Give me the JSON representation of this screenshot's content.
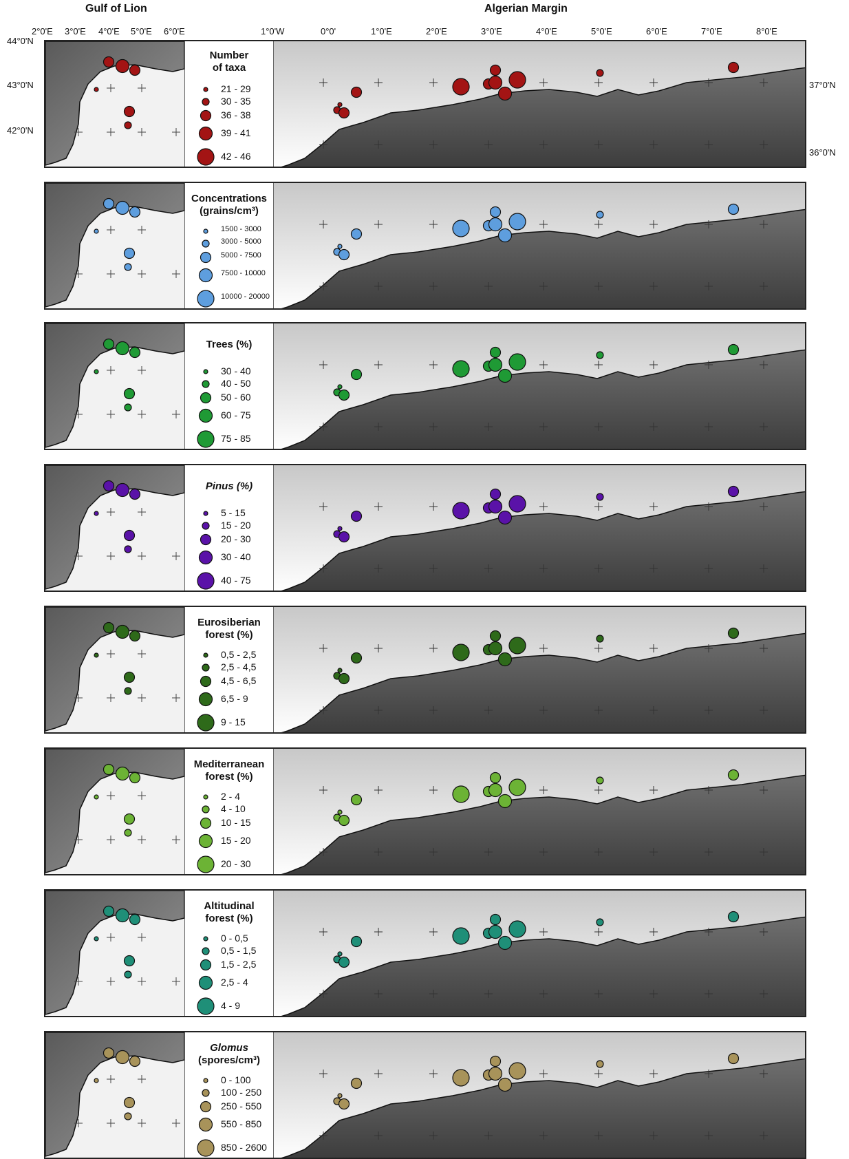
{
  "headers": {
    "left": "Gulf of Lion",
    "right": "Algerian Margin"
  },
  "top_lon_labels_left": [
    "2°0'E",
    "3°0'E",
    "4°0'E",
    "5°0'E",
    "6°0'E"
  ],
  "top_lon_labels_right": [
    "1°0'W",
    "0°0'",
    "1°0'E",
    "2°0'E",
    "3°0'E",
    "4°0'E",
    "5°0'E",
    "6°0'E",
    "7°0'E",
    "8°0'E"
  ],
  "lat_labels_left": [
    "44°0'N",
    "43°0'N",
    "42°0'N"
  ],
  "lat_labels_right": [
    "37°0'N",
    "36°0'N"
  ],
  "colors": {
    "taxa": "#a31414",
    "conc": "#5e9ede",
    "trees": "#1f9a35",
    "pinus": "#5a12a8",
    "euro": "#2e6a1a",
    "med": "#6cb335",
    "alt": "#1f8f78",
    "glomus": "#a8935a"
  },
  "panels": [
    {
      "key": "taxa",
      "title": "Number\nof taxa",
      "italic": false,
      "legend": [
        "21 - 29",
        "30 - 35",
        "36 - 38",
        "39 - 41",
        "42 - 46"
      ]
    },
    {
      "key": "conc",
      "title": "Concentrations\n(grains/cm³)",
      "italic": false,
      "legend": [
        "1500 - 3000",
        "3000 - 5000",
        "5000 - 7500",
        "7500 - 10000",
        "10000 - 20000"
      ]
    },
    {
      "key": "trees",
      "title": "Trees (%)",
      "italic": false,
      "legend": [
        "30 - 40",
        "40 - 50",
        "50 - 60",
        "60 - 75",
        "75 - 85"
      ]
    },
    {
      "key": "pinus",
      "title": "Pinus (%)",
      "italic": true,
      "legend": [
        "5 - 15",
        "15 - 20",
        "20 - 30",
        "30 - 40",
        "40 - 75"
      ]
    },
    {
      "key": "euro",
      "title": "Eurosiberian\nforest (%)",
      "italic": false,
      "legend": [
        "0,5 - 2,5",
        "2,5 - 4,5",
        "4,5 - 6,5",
        "6,5 - 9",
        "9 - 15"
      ]
    },
    {
      "key": "med",
      "title": "Mediterranean\nforest (%)",
      "italic": false,
      "legend": [
        "2 - 4",
        "4 - 10",
        "10 - 15",
        "15 - 20",
        "20 - 30"
      ]
    },
    {
      "key": "alt",
      "title": "Altitudinal\nforest (%)",
      "italic": false,
      "legend": [
        "0 - 0,5",
        "0,5 - 1,5",
        "1,5 - 2,5",
        "2,5 - 4",
        "4 - 9"
      ]
    },
    {
      "key": "glomus",
      "title": "Glomus\n(spores/cm³)",
      "italic": true,
      "legend": [
        "0 - 100",
        "100 - 250",
        "250 - 550",
        "550 - 850",
        "850 - 2600"
      ]
    }
  ]
}
